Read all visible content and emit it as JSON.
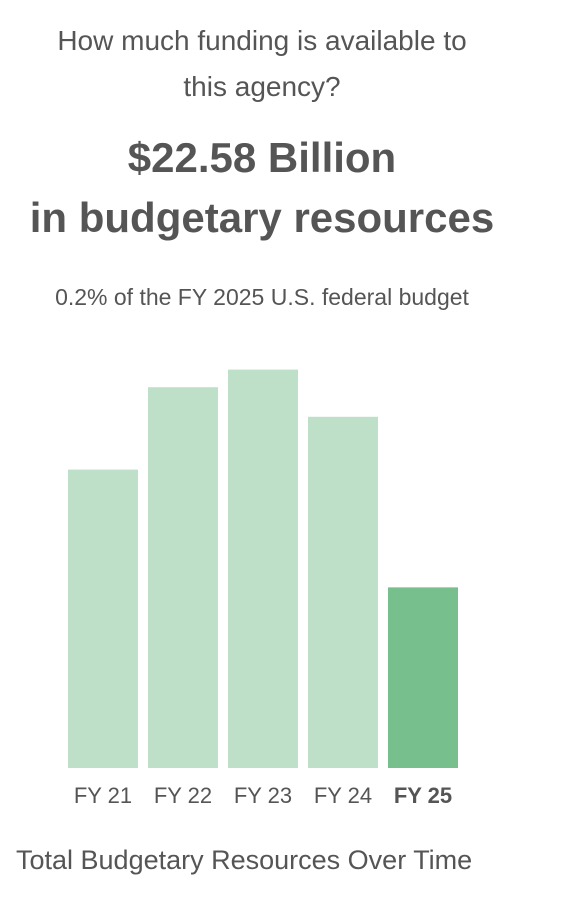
{
  "header": {
    "question_line1": "How much funding is available to",
    "question_line2": "this agency?",
    "amount_line1": "$22.58 Billion",
    "amount_line2": "in budgetary resources",
    "share": "0.2% of the FY 2025 U.S. federal budget"
  },
  "caption": "Total Budgetary Resources Over Time",
  "colors": {
    "bar": "#bee0c8",
    "highlight_bar": "#78bf8e",
    "text": "#555555"
  },
  "chart_data": {
    "type": "bar",
    "categories": [
      "FY 21",
      "FY 22",
      "FY 23",
      "FY 24",
      "FY 25"
    ],
    "values": [
      37.3,
      47.6,
      49.8,
      43.9,
      22.58
    ],
    "highlight": "FY 25",
    "title": "Total Budgetary Resources Over Time",
    "xlabel": "",
    "ylabel": "",
    "unit": "$ Billion",
    "ylim": [
      0,
      50
    ],
    "grid": false,
    "legend": "none"
  }
}
